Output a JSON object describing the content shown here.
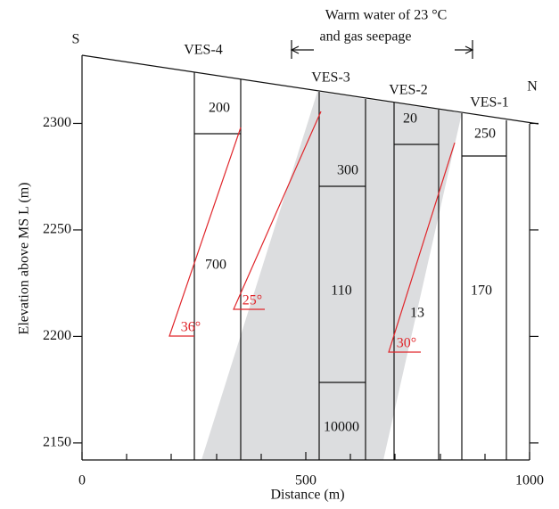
{
  "annotation": [
    "Warm water of 23 °C",
    "and gas seepage"
  ],
  "directions": {
    "south": "S",
    "north": "N"
  },
  "axes": {
    "xlabel": "Distance (m)",
    "ylabel": "Elevation above MS L (m)",
    "xlim": [
      0,
      1000
    ],
    "ylim": [
      2142,
      2332
    ],
    "xticks": [
      0,
      500,
      1000
    ],
    "yticks": [
      2150,
      2200,
      2250,
      2300
    ]
  },
  "soundings": [
    {
      "label": "VES-4",
      "layers": [
        "200",
        "700"
      ]
    },
    {
      "label": "VES-3",
      "layers": [
        "300",
        "110",
        "10000"
      ]
    },
    {
      "label": "VES-2",
      "layers": [
        "20",
        "13"
      ]
    },
    {
      "label": "VES-1",
      "layers": [
        "250",
        "170"
      ]
    }
  ],
  "dips": [
    "36°",
    "25°",
    "30°"
  ]
}
